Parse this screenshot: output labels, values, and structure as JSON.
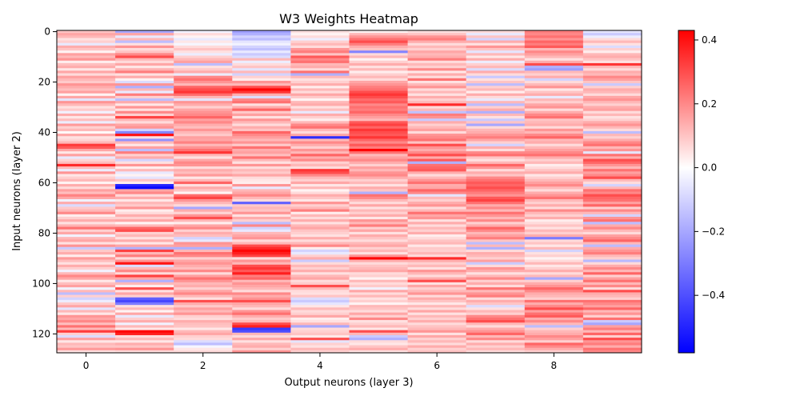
{
  "chart_data": {
    "type": "heatmap",
    "title": "W3 Weights Heatmap",
    "xlabel": "Output neurons (layer 3)",
    "ylabel": "Input neurons (layer 2)",
    "rows": 128,
    "cols": 10,
    "xlim": [
      -0.5,
      9.5
    ],
    "ylim": [
      127.5,
      -0.5
    ],
    "x_ticks": [
      0,
      2,
      4,
      6,
      8
    ],
    "y_ticks": [
      0,
      20,
      40,
      60,
      80,
      100,
      120
    ],
    "colormap": "bwr",
    "vmin": -0.58,
    "vmax": 0.43,
    "colorbar_ticks": [
      0.4,
      0.2,
      0.0,
      -0.2,
      -0.4
    ],
    "colorbar_tick_labels": [
      "0.4",
      "0.2",
      "0.0",
      "−0.2",
      "−0.4"
    ],
    "colors": {
      "low": "#0000ff",
      "mid": "#ffffff",
      "high": "#ff0000"
    },
    "columns": [
      [
        0.1,
        0.15,
        0.12,
        0.05,
        0.08,
        -0.05,
        0.14,
        0.1,
        0.02,
        0.16,
        0.12,
        0.18,
        0.03,
        0.11,
        0.14,
        0.04,
        0.15,
        0.06,
        0.16,
        0.12,
        0.09,
        0.18,
        0.14,
        0.11,
        0.16,
        0.02,
        0.15,
        -0.06,
        0.18,
        0.12,
        0.05,
        0.09,
        -0.03,
        0.14,
        0.04,
        0.11,
        -0.04,
        0.17,
        0.08,
        0.12,
        0.01,
        0.15,
        0.05,
        0.07,
        0.12,
        0.33,
        0.28,
        0.15,
        0.04,
        0.16,
        -0.05,
        0.07,
        0.11,
        0.36,
        0.12,
        -0.04,
        0.18,
        0.04,
        0.08,
        0.12,
        0.02,
        0.14,
        0.06,
        0.16,
        0.11,
        0.21,
        0.15,
        -0.03,
        0.14,
        -0.08,
        0.09,
        0.12,
        0.2,
        0.03,
        0.08,
        0.14,
        0.05,
        0.13,
        0.24,
        0.08,
        0.15,
        -0.03,
        0.12,
        0.15,
        0.05,
        0.18,
        -0.12,
        0.09,
        0.14,
        0.03,
        0.17,
        0.11,
        0.05,
        0.14,
        0.08,
        -0.03,
        0.12,
        0.2,
        0.15,
        0.04,
        0.11,
        0.16,
        -0.03,
        0.12,
        -0.15,
        0.08,
        -0.1,
        -0.04,
        0.09,
        0.15,
        -0.06,
        0.12,
        0.04,
        0.18,
        0.15,
        0.2,
        0.11,
        0.24,
        0.12,
        0.33,
        0.08,
        -0.08,
        0.16,
        0.04,
        0.12,
        0.1,
        0.17,
        0.05
      ],
      [
        -0.2,
        0.15,
        -0.05,
        0.12,
        -0.15,
        0.05,
        0.18,
        0.06,
        0.1,
        0.2,
        0.3,
        0.12,
        0.06,
        0.15,
        0.04,
        0.13,
        0.22,
        0.05,
        0.14,
        0.02,
        -0.08,
        0.18,
        -0.18,
        0.12,
        -0.05,
        0.22,
        0.08,
        -0.15,
        0.14,
        0.04,
        0.18,
        0.05,
        0.2,
        0.08,
        0.32,
        0.12,
        0.06,
        0.15,
        0.18,
        -0.1,
        -0.28,
        0.4,
        0.05,
        -0.25,
        0.12,
        0.04,
        0.16,
        -0.15,
        0.22,
        0.08,
        0.14,
        -0.1,
        0.05,
        0.18,
        0.03,
        0.12,
        -0.05,
        0.02,
        -0.06,
        0.1,
        0.03,
        -0.5,
        -0.56,
        0.15,
        0.2,
        0.06,
        0.14,
        0.04,
        0.12,
        0.09,
        0.18,
        0.03,
        0.06,
        0.14,
        0.08,
        0.15,
        0.02,
        0.12,
        0.26,
        0.3,
        0.08,
        0.12,
        0.05,
        0.14,
        0.04,
        0.15,
        -0.18,
        0.32,
        0.12,
        0.22,
        0.06,
        0.18,
        0.4,
        -0.08,
        0.12,
        0.2,
        0.06,
        0.32,
        0.15,
        -0.18,
        0.12,
        0.03,
        0.3,
        0.05,
        0.15,
        0.08,
        -0.36,
        -0.42,
        -0.3,
        0.05,
        0.12,
        0.02,
        0.15,
        -0.05,
        0.08,
        0.14,
        -0.03,
        0.12,
        0.04,
        0.42,
        0.38,
        0.06,
        0.12,
        0.04,
        0.14,
        0.1,
        0.18,
        0.06
      ],
      [
        -0.03,
        0.06,
        0.02,
        -0.05,
        0.04,
        -0.02,
        0.06,
        0.1,
        0.05,
        -0.04,
        0.08,
        0.12,
        0.16,
        -0.15,
        0.05,
        0.09,
        0.14,
        -0.04,
        0.2,
        0.24,
        0.18,
        0.12,
        0.26,
        0.3,
        0.34,
        0.25,
        0.12,
        -0.06,
        0.18,
        0.14,
        0.08,
        0.15,
        0.18,
        0.2,
        0.26,
        0.16,
        0.2,
        0.14,
        0.11,
        0.18,
        0.12,
        0.09,
        0.16,
        0.15,
        0.21,
        0.12,
        0.18,
        0.24,
        0.34,
        0.12,
        0.05,
        0.15,
        0.2,
        0.18,
        0.06,
        0.14,
        0.11,
        0.17,
        0.04,
        0.12,
        0.26,
        0.05,
        0.14,
        0.1,
        0.02,
        0.25,
        0.32,
        0.18,
        0.12,
        0.06,
        -0.2,
        0.14,
        0.07,
        0.18,
        0.3,
        0.12,
        0.03,
        0.15,
        0.2,
        0.08,
        0.14,
        0.11,
        -0.1,
        -0.05,
        0.18,
        0.16,
        -0.18,
        0.12,
        0.24,
        0.2,
        0.08,
        0.15,
        0.18,
        0.14,
        0.11,
        0.2,
        0.06,
        0.16,
        0.24,
        0.18,
        0.12,
        0.14,
        0.08,
        0.15,
        0.2,
        0.12,
        0.05,
        0.3,
        0.14,
        0.09,
        0.16,
        0.12,
        0.18,
        0.08,
        0.06,
        0.14,
        0.11,
        0.1,
        0.04,
        0.12,
        0.15,
        0.08,
        0.06,
        -0.08,
        -0.15,
        -0.02,
        0.04,
        0.06
      ],
      [
        -0.22,
        -0.18,
        -0.1,
        -0.15,
        -0.06,
        -0.03,
        -0.1,
        -0.14,
        -0.05,
        -0.12,
        -0.08,
        0.12,
        -0.04,
        0.06,
        0.1,
        -0.06,
        0.12,
        -0.1,
        0.08,
        0.03,
        0.18,
        0.12,
        0.3,
        0.42,
        0.34,
        0.14,
        -0.08,
        0.2,
        0.24,
        0.05,
        0.14,
        0.26,
        0.09,
        0.16,
        0.05,
        0.18,
        0.12,
        0.06,
        0.14,
        0.1,
        0.26,
        0.2,
        0.16,
        0.12,
        0.18,
        0.09,
        0.24,
        0.14,
        0.16,
        0.11,
        0.24,
        0.12,
        0.05,
        0.18,
        0.06,
        0.12,
        0.09,
        0.15,
        0.06,
        0.04,
        0.03,
        0.18,
        -0.05,
        0.12,
        0.15,
        0.2,
        0.12,
        0.06,
        -0.36,
        0.09,
        0.12,
        0.1,
        0.18,
        0.05,
        0.14,
        0.08,
        -0.15,
        0.2,
        -0.1,
        -0.05,
        0.12,
        0.15,
        0.18,
        0.06,
        0.12,
        0.3,
        0.36,
        0.42,
        0.38,
        0.32,
        0.06,
        0.18,
        0.12,
        0.3,
        0.34,
        0.28,
        0.38,
        0.22,
        0.26,
        0.12,
        0.18,
        0.15,
        0.12,
        0.06,
        0.2,
        0.14,
        0.18,
        0.3,
        0.15,
        0.12,
        0.06,
        0.18,
        0.24,
        0.14,
        0.09,
        0.12,
        0.3,
        0.38,
        -0.45,
        -0.4,
        0.12,
        0.06,
        0.15,
        0.05,
        0.12,
        0.14,
        0.08,
        0.18
      ],
      [
        0.05,
        0.02,
        0.06,
        -0.04,
        0.08,
        0.12,
        0.06,
        0.18,
        0.22,
        0.1,
        0.28,
        0.2,
        0.24,
        0.12,
        0.14,
        0.06,
        0.24,
        -0.18,
        0.12,
        0.05,
        0.08,
        0.14,
        0.03,
        0.12,
        0.06,
        0.15,
        0.09,
        0.02,
        0.12,
        0.14,
        0.05,
        0.11,
        -0.05,
        0.14,
        0.08,
        0.03,
        0.12,
        0.2,
        0.24,
        0.12,
        0.06,
        0.15,
        -0.48,
        0.12,
        0.2,
        0.14,
        0.08,
        0.18,
        0.12,
        0.26,
        0.14,
        0.2,
        0.08,
        0.12,
        0.06,
        0.34,
        0.3,
        0.2,
        0.12,
        0.08,
        0.15,
        0.04,
        0.12,
        0.02,
        0.06,
        0.14,
        0.1,
        0.04,
        0.18,
        0.08,
        0.12,
        0.22,
        0.03,
        0.12,
        0.06,
        0.14,
        0.05,
        0.12,
        0.15,
        0.1,
        0.08,
        0.05,
        0.14,
        0.06,
        0.12,
        0.2,
        0.03,
        -0.1,
        -0.05,
        0.08,
        0.14,
        -0.12,
        0.06,
        0.12,
        0.08,
        0.14,
        0.05,
        0.12,
        0.15,
        0.06,
        0.09,
        0.3,
        0.12,
        0.06,
        0.05,
        0.1,
        -0.08,
        -0.12,
        -0.06,
        0.04,
        0.12,
        0.06,
        0.08,
        0.15,
        0.03,
        0.05,
        0.12,
        -0.2,
        0.06,
        0.08,
        0.1,
        0.04,
        0.3,
        -0.06,
        0.08,
        0.05,
        0.12,
        0.08
      ],
      [
        0.02,
        0.12,
        0.18,
        0.24,
        0.3,
        0.22,
        0.14,
        0.1,
        -0.28,
        0.06,
        0.12,
        0.02,
        0.08,
        0.14,
        0.05,
        0.12,
        0.03,
        0.08,
        0.12,
        0.06,
        0.15,
        0.18,
        0.22,
        0.24,
        0.3,
        0.34,
        0.3,
        0.25,
        0.28,
        0.2,
        0.24,
        0.22,
        0.26,
        0.2,
        0.16,
        0.12,
        0.28,
        0.32,
        0.26,
        0.34,
        0.3,
        0.28,
        0.34,
        0.26,
        0.2,
        0.28,
        0.22,
        0.45,
        0.24,
        0.12,
        0.16,
        0.2,
        0.14,
        0.08,
        0.16,
        0.12,
        0.18,
        0.2,
        0.14,
        0.08,
        0.12,
        0.05,
        0.14,
        0.1,
        -0.18,
        0.24,
        0.2,
        0.12,
        0.06,
        0.15,
        0.05,
        0.12,
        0.08,
        0.14,
        0.04,
        0.18,
        0.12,
        0.22,
        0.08,
        0.15,
        0.05,
        0.14,
        0.1,
        0.06,
        0.12,
        0.15,
        0.08,
        0.12,
        0.05,
        0.18,
        0.42,
        0.14,
        0.06,
        0.1,
        0.12,
        0.15,
        0.06,
        0.08,
        0.02,
        0.12,
        0.06,
        0.09,
        -0.03,
        0.15,
        0.06,
        0.12,
        0.05,
        0.08,
        0.02,
        0.12,
        0.1,
        0.06,
        0.15,
        0.08,
        0.2,
        0.05,
        0.08,
        0.12,
        0.04,
        0.3,
        0.12,
        -0.12,
        -0.18,
        0.06,
        0.04,
        0.1,
        0.14,
        0.05
      ],
      [
        0.05,
        0.1,
        0.18,
        0.22,
        0.14,
        0.06,
        0.12,
        0.08,
        0.15,
        0.12,
        0.14,
        0.22,
        0.06,
        0.12,
        0.08,
        0.2,
        0.04,
        0.14,
        0.06,
        0.24,
        0.05,
        0.12,
        0.18,
        0.06,
        0.12,
        0.05,
        0.14,
        0.08,
        0.12,
        0.36,
        0.06,
        0.12,
        -0.14,
        0.22,
        0.18,
        -0.12,
        0.14,
        0.08,
        0.12,
        0.16,
        0.06,
        0.18,
        0.2,
        0.24,
        0.1,
        0.3,
        0.18,
        0.14,
        0.2,
        0.3,
        0.14,
        0.28,
        -0.18,
        0.24,
        0.26,
        0.28,
        0.14,
        0.06,
        0.12,
        0.18,
        0.24,
        0.14,
        0.15,
        0.26,
        0.2,
        -0.06,
        0.12,
        0.08,
        0.14,
        0.18,
        0.06,
        0.12,
        0.24,
        0.15,
        0.18,
        0.05,
        0.14,
        0.06,
        0.12,
        0.08,
        0.14,
        0.03,
        0.06,
        0.1,
        0.12,
        0.04,
        0.09,
        0.08,
        0.12,
        0.06,
        0.36,
        0.14,
        0.08,
        0.12,
        0.05,
        0.18,
        0.12,
        0.06,
        0.14,
        0.3,
        0.05,
        0.15,
        0.08,
        0.12,
        0.18,
        0.06,
        0.14,
        0.1,
        0.04,
        0.12,
        0.06,
        0.15,
        0.05,
        0.12,
        0.08,
        0.14,
        0.06,
        0.1,
        0.12,
        0.18,
        0.05,
        0.15,
        0.08,
        0.12,
        0.06,
        0.14,
        0.08,
        0.1
      ],
      [
        0.06,
        -0.05,
        0.1,
        -0.1,
        0.14,
        0.05,
        0.18,
        0.1,
        -0.06,
        0.12,
        0.04,
        0.14,
        -0.04,
        0.08,
        0.12,
        -0.08,
        0.14,
        0.06,
        -0.12,
        0.05,
        0.1,
        -0.15,
        0.08,
        0.12,
        0.03,
        0.14,
        0.06,
        -0.05,
        0.12,
        -0.15,
        0.08,
        0.14,
        -0.18,
        0.12,
        0.05,
        -0.12,
        0.1,
        -0.2,
        0.06,
        0.12,
        0.14,
        0.18,
        0.22,
        0.15,
        0.08,
        -0.1,
        0.14,
        0.06,
        0.2,
        0.24,
        0.1,
        0.05,
        0.12,
        0.26,
        0.18,
        0.06,
        0.14,
        0.1,
        0.2,
        0.24,
        0.28,
        0.26,
        0.3,
        0.26,
        0.22,
        0.18,
        0.28,
        0.32,
        0.24,
        0.14,
        0.2,
        0.12,
        0.24,
        0.18,
        0.12,
        0.2,
        0.08,
        0.14,
        0.26,
        0.2,
        0.12,
        0.16,
        0.22,
        0.1,
        -0.15,
        0.12,
        -0.18,
        0.06,
        0.14,
        0.12,
        0.08,
        0.16,
        -0.12,
        0.06,
        0.18,
        0.14,
        0.05,
        0.12,
        0.2,
        0.08,
        0.14,
        0.06,
        0.24,
        0.12,
        0.18,
        0.22,
        0.06,
        0.14,
        0.1,
        -0.08,
        0.05,
        0.12,
        0.08,
        0.2,
        0.24,
        0.3,
        0.12,
        0.06,
        0.14,
        0.18,
        0.26,
        0.12,
        0.2,
        0.06,
        0.14,
        0.08,
        0.12,
        0.06
      ],
      [
        0.22,
        0.2,
        0.24,
        0.18,
        0.26,
        0.22,
        0.28,
        0.12,
        0.2,
        0.16,
        0.12,
        0.05,
        0.14,
        0.3,
        -0.18,
        -0.22,
        0.12,
        0.08,
        0.14,
        -0.1,
        0.06,
        0.12,
        0.18,
        0.04,
        0.1,
        0.14,
        -0.05,
        0.12,
        0.08,
        0.15,
        0.18,
        0.06,
        0.14,
        0.2,
        0.24,
        0.1,
        0.12,
        0.14,
        0.06,
        0.18,
        0.12,
        0.2,
        0.26,
        0.12,
        0.14,
        0.06,
        0.12,
        0.16,
        0.2,
        0.24,
        0.14,
        0.08,
        0.12,
        0.03,
        0.06,
        0.1,
        0.14,
        0.04,
        0.08,
        0.12,
        0.16,
        0.2,
        0.12,
        0.06,
        0.14,
        0.18,
        0.24,
        0.12,
        0.08,
        0.14,
        0.06,
        0.2,
        0.12,
        0.08,
        0.14,
        0.03,
        0.06,
        0.1,
        0.05,
        0.12,
        0.08,
        0.14,
        -0.3,
        0.06,
        0.1,
        0.04,
        0.12,
        -0.1,
        0.05,
        0.08,
        0.02,
        0.06,
        0.12,
        0.04,
        0.08,
        0.14,
        0.06,
        0.12,
        -0.2,
        0.08,
        0.14,
        0.18,
        0.26,
        0.2,
        0.14,
        0.12,
        0.08,
        0.24,
        0.14,
        0.2,
        0.3,
        0.16,
        0.24,
        0.28,
        0.14,
        0.2,
        0.12,
        -0.15,
        0.08,
        0.12,
        0.14,
        0.2,
        0.16,
        0.08,
        0.26,
        0.2,
        0.14,
        0.08
      ],
      [
        -0.06,
        -0.12,
        -0.04,
        0.06,
        0.12,
        0.05,
        -0.08,
        0.08,
        0.03,
        0.12,
        0.14,
        0.1,
        0.05,
        0.34,
        0.12,
        0.06,
        0.14,
        0.12,
        0.2,
        0.16,
        0.1,
        -0.12,
        0.08,
        0.14,
        0.12,
        0.06,
        0.15,
        0.18,
        0.12,
        0.08,
        0.14,
        0.16,
        0.06,
        0.12,
        0.05,
        0.08,
        0.14,
        0.18,
        0.12,
        0.06,
        -0.15,
        0.12,
        0.08,
        0.14,
        0.2,
        0.24,
        0.12,
        0.18,
        -0.06,
        0.24,
        0.14,
        0.3,
        0.26,
        0.18,
        0.12,
        0.24,
        0.16,
        0.2,
        0.3,
        0.12,
        0.06,
        -0.1,
        0.12,
        0.24,
        0.2,
        0.3,
        0.26,
        0.24,
        0.16,
        0.26,
        0.08,
        0.2,
        0.12,
        -0.1,
        0.18,
        0.24,
        -0.15,
        0.14,
        0.2,
        0.12,
        0.06,
        0.16,
        0.2,
        0.26,
        0.12,
        -0.15,
        0.14,
        0.18,
        0.22,
        0.12,
        0.08,
        -0.16,
        0.06,
        0.14,
        0.2,
        0.12,
        0.26,
        0.08,
        0.16,
        0.24,
        0.12,
        0.2,
        0.06,
        0.3,
        0.14,
        0.12,
        0.08,
        0.24,
        0.2,
        0.16,
        0.26,
        0.12,
        0.18,
        0.08,
        0.24,
        -0.12,
        -0.2,
        0.16,
        0.22,
        0.12,
        0.26,
        0.08,
        0.3,
        0.18,
        0.22,
        0.14,
        0.24,
        0.2
      ]
    ]
  }
}
